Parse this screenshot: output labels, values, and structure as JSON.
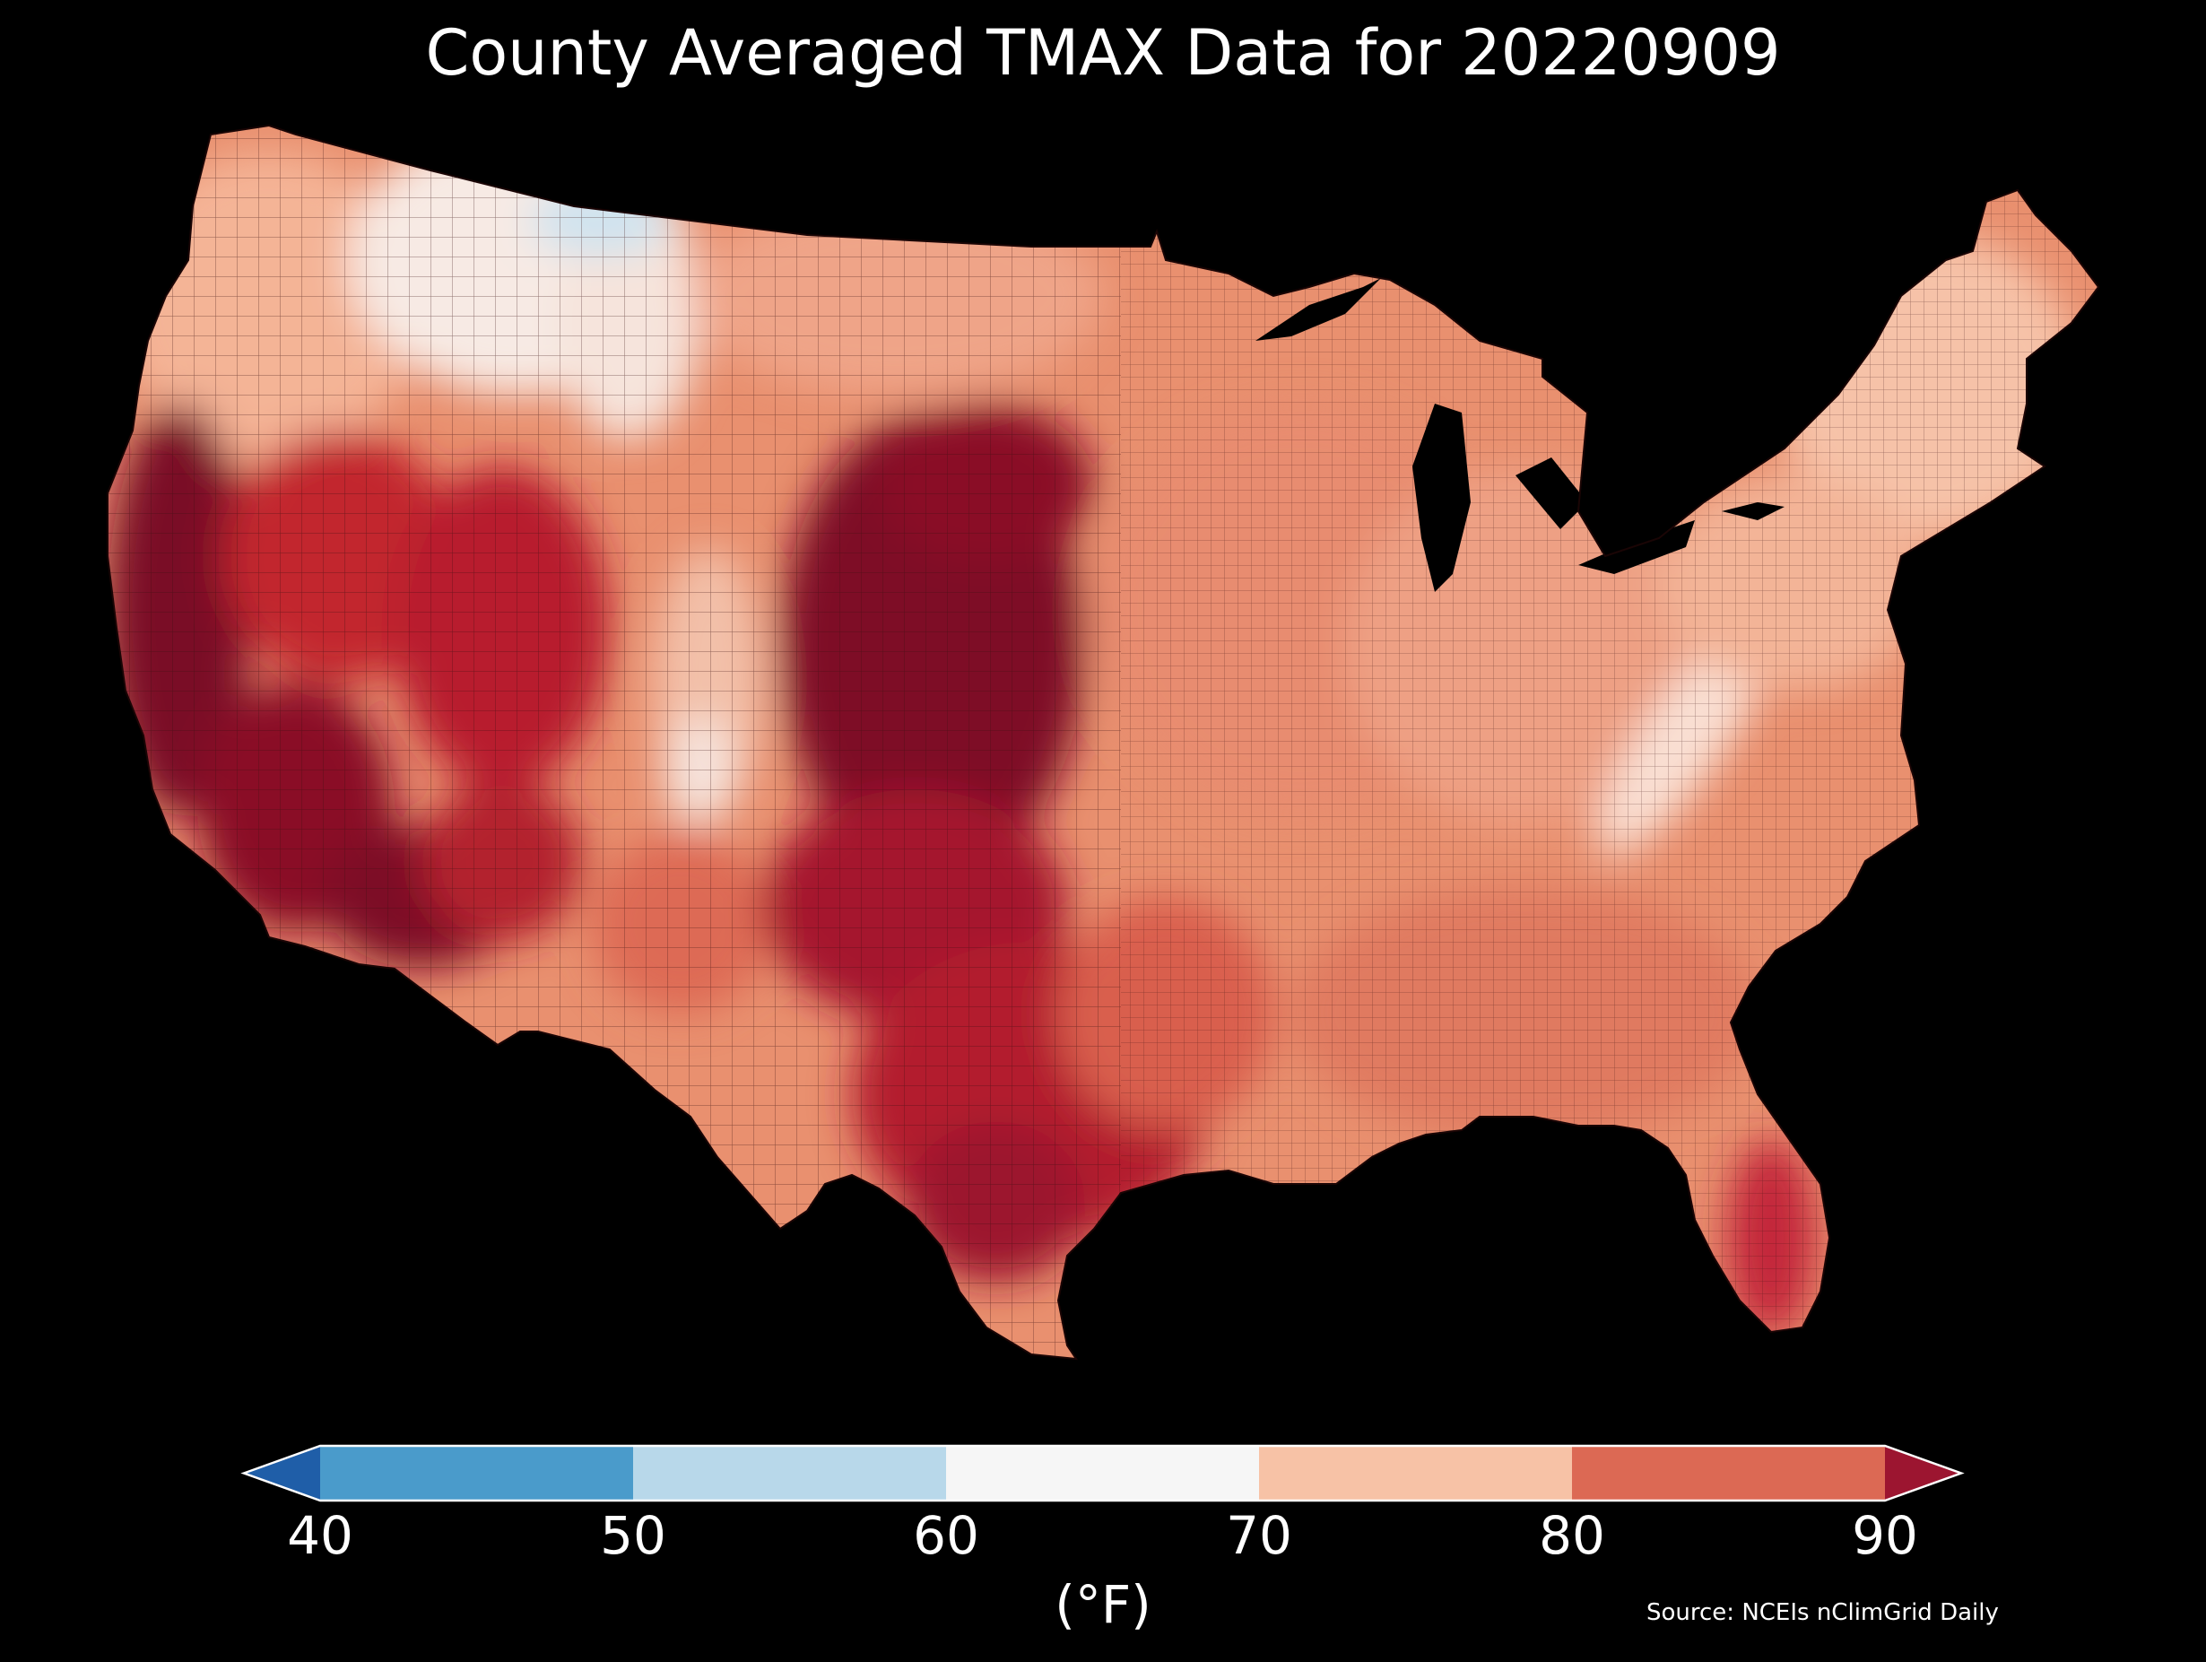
{
  "title": "County Averaged TMAX Data for 20220909",
  "source": "Source: NCEIs nClimGrid Daily",
  "colorbar": {
    "unit": "(°F)",
    "ticks": [
      "40",
      "50",
      "60",
      "70",
      "80",
      "90"
    ],
    "bins": [
      {
        "range": "<40",
        "color": "#1f5ea8"
      },
      {
        "range": "40-50",
        "color": "#4a9bcb"
      },
      {
        "range": "50-60",
        "color": "#b8d8ea"
      },
      {
        "range": "60-70",
        "color": "#f6f6f6"
      },
      {
        "range": "70-80",
        "color": "#f7c2a6"
      },
      {
        "range": "80-90",
        "color": "#dc6954"
      },
      {
        "range": ">90",
        "color": "#9c1530"
      }
    ]
  },
  "map": {
    "region": "Contiguous United States",
    "unit": "county",
    "variable": "TMAX",
    "regions": [
      {
        "name": "Pacific Northwest coast",
        "temp_range": "70-80"
      },
      {
        "name": "Northern Rockies / Montana / Idaho",
        "temp_range": "60-70"
      },
      {
        "name": "Northwestern Montana (Glacier area)",
        "temp_range": "50-60"
      },
      {
        "name": "Northern Plains / Dakotas",
        "temp_range": "70-80"
      },
      {
        "name": "Central and Southern California",
        "temp_range": ">90"
      },
      {
        "name": "Nevada / Utah / Arizona",
        "temp_range": "80-90 to >90"
      },
      {
        "name": "Colorado Rockies",
        "temp_range": "60-80"
      },
      {
        "name": "Great Plains (Nebraska, Kansas, western Oklahoma)",
        "temp_range": ">90"
      },
      {
        "name": "Texas",
        "temp_range": "80-90 to >90"
      },
      {
        "name": "Midwest / Great Lakes",
        "temp_range": "70-80"
      },
      {
        "name": "Appalachian ridge",
        "temp_range": "60-70"
      },
      {
        "name": "Northeast / New England",
        "temp_range": "70-80"
      },
      {
        "name": "Southeast / Gulf Coast",
        "temp_range": "80-90"
      },
      {
        "name": "Florida peninsula",
        "temp_range": "80-90"
      }
    ]
  }
}
